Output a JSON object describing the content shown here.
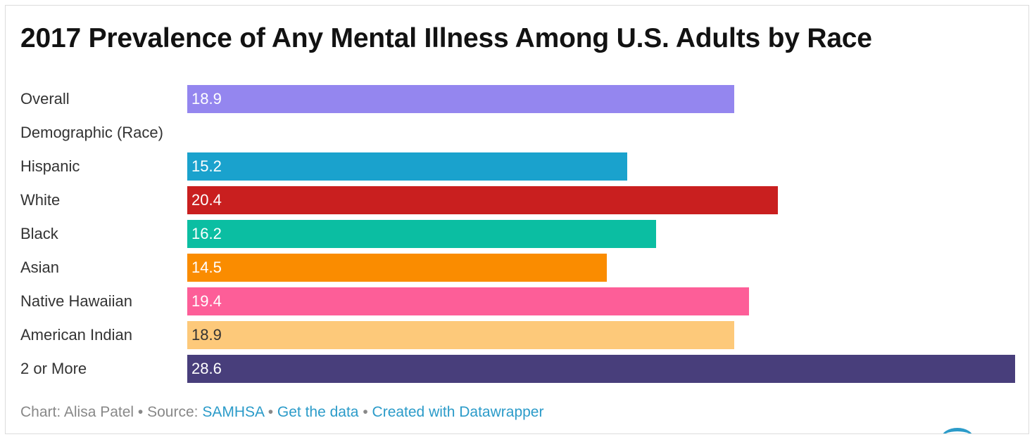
{
  "title": "2017 Prevalence of Any Mental Illness Among U.S. Adults by Race",
  "chart_data": {
    "type": "bar",
    "orientation": "horizontal",
    "title": "2017 Prevalence of Any Mental Illness Among U.S. Adults by Race",
    "xlim": [
      0,
      28.6
    ],
    "grid": false,
    "rows": [
      {
        "label": "Overall",
        "value": 18.9,
        "color": "#9486ef",
        "text_color": "#ffffff"
      },
      {
        "label": "Demographic (Race)",
        "value": null,
        "color": null,
        "text_color": null
      },
      {
        "label": "Hispanic",
        "value": 15.2,
        "color": "#1aa2cd",
        "text_color": "#ffffff"
      },
      {
        "label": "White",
        "value": 20.4,
        "color": "#c91f1f",
        "text_color": "#ffffff"
      },
      {
        "label": "Black",
        "value": 16.2,
        "color": "#0bbea2",
        "text_color": "#ffffff"
      },
      {
        "label": "Asian",
        "value": 14.5,
        "color": "#fa8c00",
        "text_color": "#ffffff"
      },
      {
        "label": "Native Hawaiian",
        "value": 19.4,
        "color": "#fd5e98",
        "text_color": "#ffffff"
      },
      {
        "label": "American Indian",
        "value": 18.9,
        "color": "#fdc97a",
        "text_color": "#333333"
      },
      {
        "label": "2 or More",
        "value": 28.6,
        "color": "#483e7b",
        "text_color": "#ffffff"
      }
    ]
  },
  "footer": {
    "chart_prefix": "Chart: Alisa Patel",
    "sep1": " • ",
    "source_prefix": "Source: ",
    "source_link": "SAMHSA",
    "sep2": " • ",
    "data_link": "Get the data",
    "sep3": " • ",
    "created_link": "Created with Datawrapper"
  },
  "colors": {
    "link": "#2b9bc9",
    "footer_text": "#888888",
    "label_text": "#333333"
  }
}
